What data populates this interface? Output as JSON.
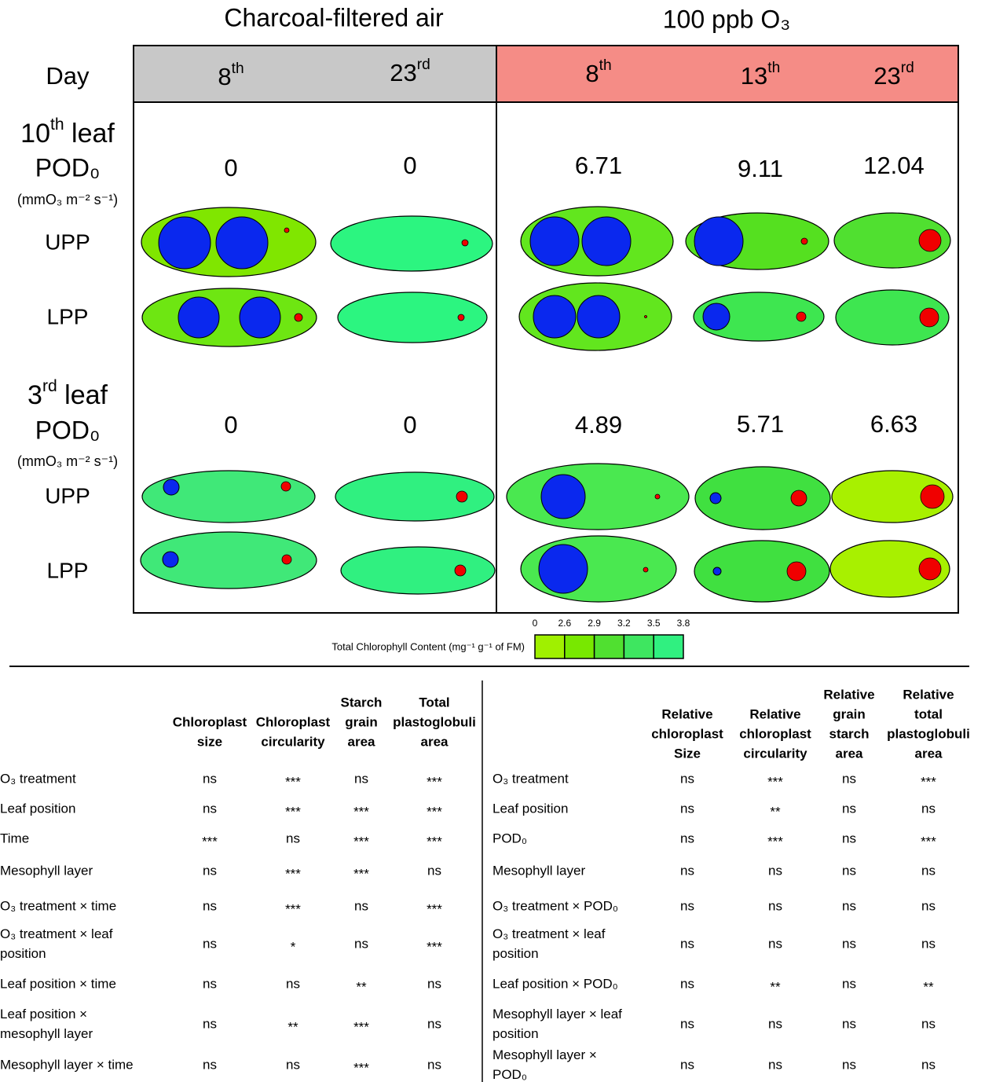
{
  "figure": {
    "groups": [
      "Charcoal-filtered air",
      "100 ppb O₃"
    ],
    "day_label": "Day",
    "days": [
      {
        "base": "8",
        "sup": "th"
      },
      {
        "base": "23",
        "sup": "rd"
      },
      {
        "base": "8",
        "sup": "th"
      },
      {
        "base": "13",
        "sup": "th"
      },
      {
        "base": "23",
        "sup": "rd"
      }
    ],
    "sections": [
      {
        "leaf": {
          "base": "10",
          "sup": "th",
          "rest": " leaf"
        },
        "pod_label": "POD₀",
        "pod_unit": "(mmO₃ m⁻² s⁻¹)",
        "pod_values": [
          0,
          0,
          6.71,
          9.11,
          12.04
        ],
        "layers": [
          "UPP",
          "LPP"
        ]
      },
      {
        "leaf": {
          "base": "3",
          "sup": "rd",
          "rest": " leaf"
        },
        "pod_label": "POD₀",
        "pod_unit": "(mmO₃ m⁻² s⁻¹)",
        "pod_values": [
          0,
          0,
          4.89,
          5.71,
          6.63
        ],
        "layers": [
          "UPP",
          "LPP"
        ]
      }
    ],
    "legend": {
      "title": "Total Chlorophyll Content (mg⁻¹ g⁻¹ of FM)",
      "ticks": [
        0,
        2.6,
        2.9,
        3.2,
        3.5,
        3.8
      ]
    }
  },
  "tables": [
    {
      "headers": [
        [
          "Chloroplast",
          "size"
        ],
        [
          "Chloroplast",
          "circularity"
        ],
        [
          "Starch",
          "grain",
          "area"
        ],
        [
          "Total",
          "plastoglobuli",
          "area"
        ]
      ],
      "rows": [
        {
          "label": [
            "O₃ treatment"
          ],
          "cells": [
            "ns",
            "***",
            "ns",
            "***"
          ]
        },
        {
          "label": [
            "Leaf position"
          ],
          "cells": [
            "ns",
            "***",
            "***",
            "***"
          ]
        },
        {
          "label": [
            "Time"
          ],
          "cells": [
            "***",
            "ns",
            "***",
            "***"
          ]
        },
        {
          "label": [
            "Mesophyll layer"
          ],
          "cells": [
            "ns",
            "***",
            "***",
            "ns"
          ]
        },
        {
          "label": [
            "O₃ treatment × time"
          ],
          "cells": [
            "ns",
            "***",
            "ns",
            "***"
          ]
        },
        {
          "label": [
            "O₃ treatment × leaf",
            "position"
          ],
          "cells": [
            "ns",
            "*",
            "ns",
            "***"
          ]
        },
        {
          "label": [
            "Leaf position × time"
          ],
          "cells": [
            "ns",
            "ns",
            "**",
            "ns"
          ]
        },
        {
          "label": [
            "Leaf position ×",
            "mesophyll layer"
          ],
          "cells": [
            "ns",
            "**",
            "***",
            "ns"
          ]
        },
        {
          "label": [
            "Mesophyll layer × time"
          ],
          "cells": [
            "ns",
            "ns",
            "***",
            "ns"
          ]
        }
      ]
    },
    {
      "headers": [
        [
          "Relative",
          "chloroplast",
          "Size"
        ],
        [
          "Relative",
          "chloroplast",
          "circularity"
        ],
        [
          "Relative",
          "grain",
          "starch",
          "area"
        ],
        [
          "Relative",
          "total",
          "plastoglobuli",
          "area"
        ]
      ],
      "rows": [
        {
          "label": [
            "O₃ treatment"
          ],
          "cells": [
            "ns",
            "***",
            "ns",
            "***"
          ]
        },
        {
          "label": [
            "Leaf position"
          ],
          "cells": [
            "ns",
            "**",
            "ns",
            "ns"
          ]
        },
        {
          "label": [
            "POD₀"
          ],
          "cells": [
            "ns",
            "***",
            "ns",
            "***"
          ]
        },
        {
          "label": [
            "Mesophyll layer"
          ],
          "cells": [
            "ns",
            "ns",
            "ns",
            "ns"
          ]
        },
        {
          "label": [
            "O₃ treatment × POD₀"
          ],
          "cells": [
            "ns",
            "ns",
            "ns",
            "ns"
          ]
        },
        {
          "label": [
            "O₃ treatment × leaf",
            "position"
          ],
          "cells": [
            "ns",
            "ns",
            "ns",
            "ns"
          ]
        },
        {
          "label": [
            "Leaf position × POD₀"
          ],
          "cells": [
            "ns",
            "**",
            "ns",
            "**"
          ]
        },
        {
          "label": [
            "Mesophyll layer × leaf",
            "position"
          ],
          "cells": [
            "ns",
            "ns",
            "ns",
            "ns"
          ]
        },
        {
          "label": [
            "Mesophyll layer ×",
            "POD₀"
          ],
          "cells": [
            "ns",
            "ns",
            "ns",
            "ns"
          ]
        }
      ]
    }
  ]
}
